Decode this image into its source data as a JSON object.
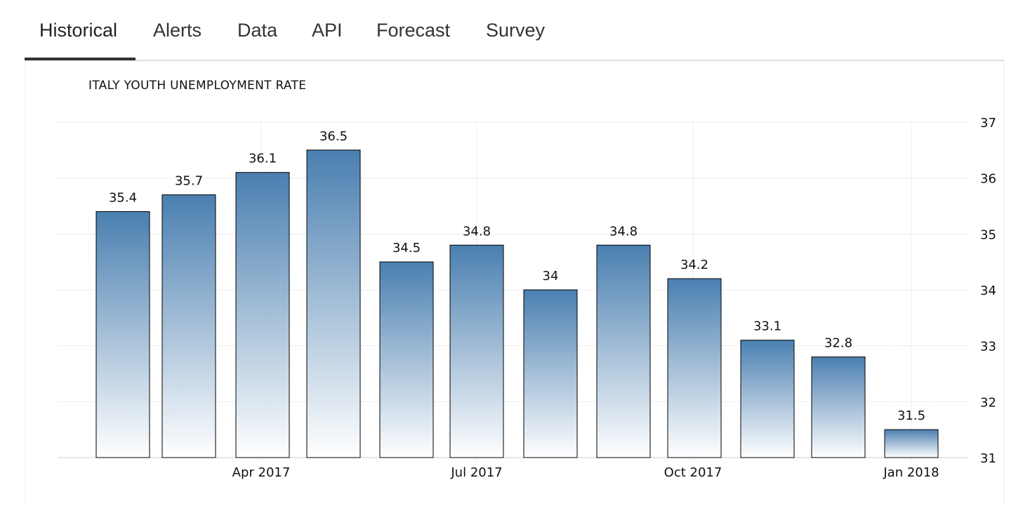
{
  "tabs": [
    {
      "label": "Historical",
      "active": true
    },
    {
      "label": "Alerts",
      "active": false
    },
    {
      "label": "Data",
      "active": false
    },
    {
      "label": "API",
      "active": false
    },
    {
      "label": "Forecast",
      "active": false
    },
    {
      "label": "Survey",
      "active": false
    }
  ],
  "colors": {
    "bar_top": "#4a7fb0",
    "bar_bottom": "#ffffff",
    "bar_border": "#000000",
    "grid": "#cccccc",
    "tab_text": "#333333",
    "tab_underline": "#333333"
  },
  "chart_data": {
    "type": "bar",
    "title": "ITALY YOUTH UNEMPLOYMENT RATE",
    "values": [
      35.4,
      35.7,
      36.1,
      36.5,
      34.5,
      34.8,
      34.0,
      34.8,
      34.2,
      33.1,
      32.8,
      31.5
    ],
    "value_labels": [
      "35.4",
      "35.7",
      "36.1",
      "36.5",
      "34.5",
      "34.8",
      "34",
      "34.8",
      "34.2",
      "33.1",
      "32.8",
      "31.5"
    ],
    "x_tick_labels": [
      "Apr 2017",
      "Jul 2017",
      "Oct 2017",
      "Jan 2018"
    ],
    "y_ticks": [
      31,
      32,
      33,
      34,
      35,
      36,
      37
    ],
    "ylim": [
      31,
      37
    ],
    "y_axis_position": "right",
    "grid": true,
    "xlabel": "",
    "ylabel": ""
  }
}
